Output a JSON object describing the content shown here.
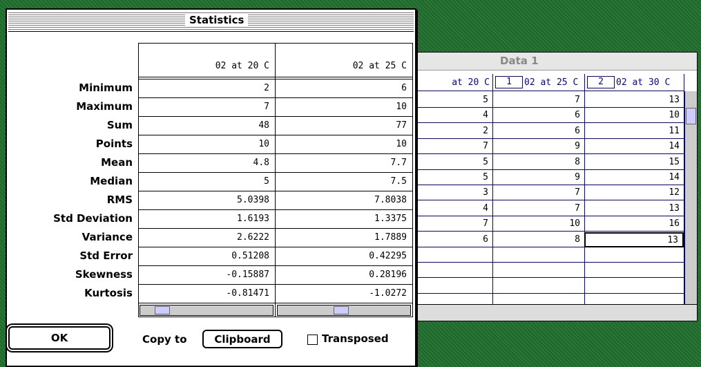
{
  "dialog": {
    "title": "Statistics",
    "columns": [
      "02 at 20 C",
      "02 at 25 C"
    ],
    "rows": [
      {
        "label": "Minimum",
        "values": [
          "2",
          "6"
        ]
      },
      {
        "label": "Maximum",
        "values": [
          "7",
          "10"
        ]
      },
      {
        "label": "Sum",
        "values": [
          "48",
          "77"
        ]
      },
      {
        "label": "Points",
        "values": [
          "10",
          "10"
        ]
      },
      {
        "label": "Mean",
        "values": [
          "4.8",
          "7.7"
        ]
      },
      {
        "label": "Median",
        "values": [
          "5",
          "7.5"
        ]
      },
      {
        "label": "RMS",
        "values": [
          "5.0398",
          "7.8038"
        ]
      },
      {
        "label": "Std Deviation",
        "values": [
          "1.6193",
          "1.3375"
        ]
      },
      {
        "label": "Variance",
        "values": [
          "2.6222",
          "1.7889"
        ]
      },
      {
        "label": "Std Error",
        "values": [
          "0.51208",
          "0.42295"
        ]
      },
      {
        "label": "Skewness",
        "values": [
          "-0.15887",
          "0.28196"
        ]
      },
      {
        "label": "Kurtosis",
        "values": [
          "-0.81471",
          "-1.0272"
        ]
      }
    ],
    "ok": "OK",
    "copy_to": "Copy to",
    "clipboard": "Clipboard",
    "transposed": "Transposed"
  },
  "data_window": {
    "title": "Data 1",
    "headers": [
      "at 20 C",
      "02 at 25 C",
      "02 at 30 C"
    ],
    "header_indices": [
      "1",
      "2"
    ],
    "rows": [
      [
        "5",
        "7",
        "13"
      ],
      [
        "4",
        "6",
        "10"
      ],
      [
        "2",
        "6",
        "11"
      ],
      [
        "7",
        "9",
        "14"
      ],
      [
        "5",
        "8",
        "15"
      ],
      [
        "5",
        "9",
        "14"
      ],
      [
        "3",
        "7",
        "12"
      ],
      [
        "4",
        "7",
        "13"
      ],
      [
        "7",
        "10",
        "16"
      ],
      [
        "6",
        "8",
        "13"
      ]
    ]
  }
}
